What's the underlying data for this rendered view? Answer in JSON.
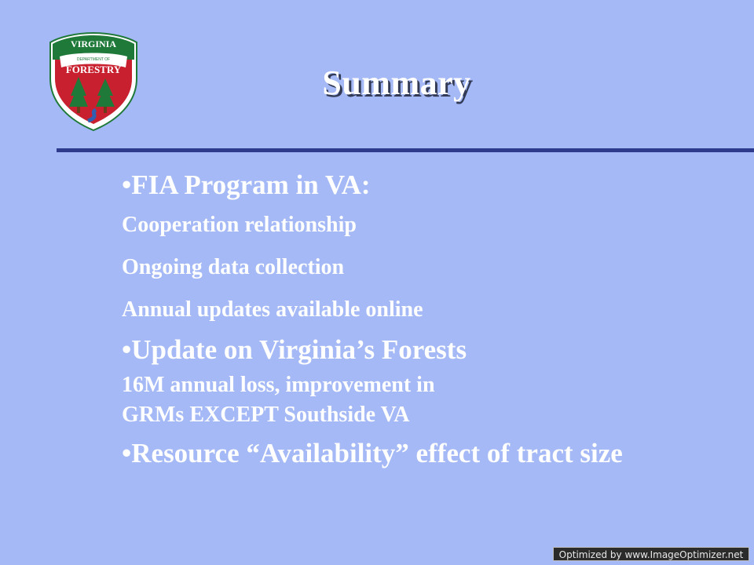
{
  "logo": {
    "top_text": "VIRGINIA",
    "middle_text": "DEPARTMENT OF",
    "main_text": "FORESTRY",
    "colors": {
      "green": "#1f7a3a",
      "red": "#c8202e",
      "white": "#ffffff",
      "blue": "#2f5fb0"
    }
  },
  "title": "Summary",
  "content": {
    "bullet_1": "•FIA Program in VA:",
    "sub_1": "Cooperation relationship",
    "sub_2": "Ongoing data collection",
    "sub_3": "Annual updates available online",
    "bullet_2": "•Update on Virginia’s Forests",
    "sub_4_line1": "16M annual loss,  improvement  in",
    "sub_4_line2": "GRMs EXCEPT  Southside VA",
    "bullet_3": "•Resource “Availability”  effect of tract size"
  },
  "watermark": "Optimized by www.ImageOptimizer.net",
  "colors": {
    "background": "#a4b9f6",
    "rule": "#2e3a8c",
    "text": "#ffffff"
  }
}
